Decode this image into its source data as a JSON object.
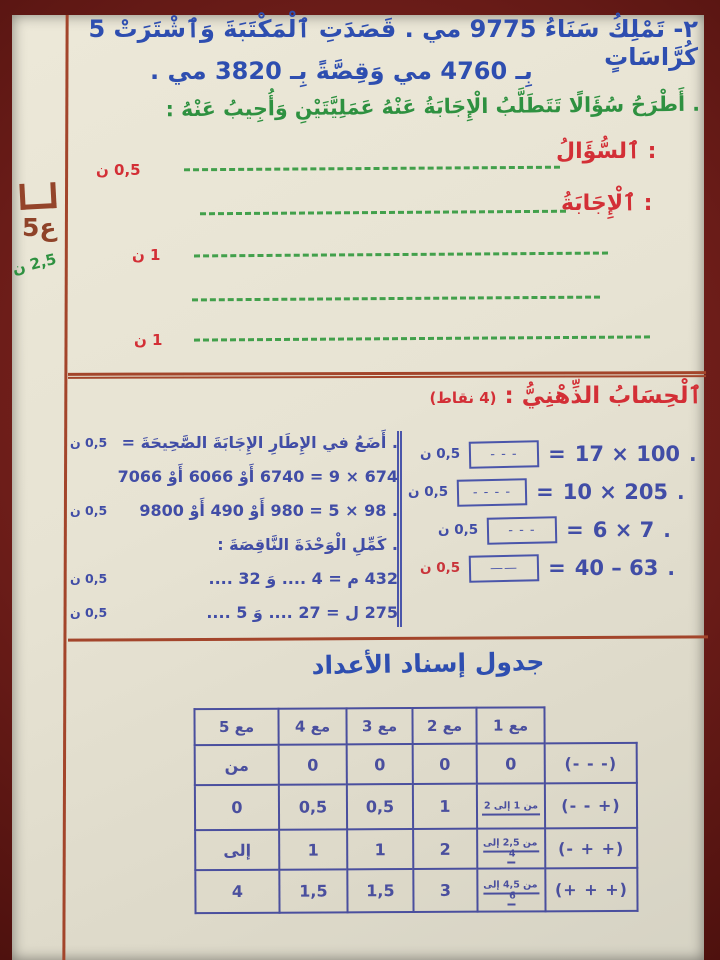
{
  "exercise": {
    "line1": "٢- تَمْلِكُ سَنَاءُ 9775 مي . قَصَدَتِ ٱلْمَكْتَبَةَ وَٱشْتَرَتْ 5 كُرَّاسَاتٍ",
    "line2": "بِـ 4760 مي وَقِصَّةً بِـ 3820 مي .",
    "instruction": ". أَطْرَحُ سُؤَالًا تَتَطَلَّبُ الْإِجَابَةُ عَنْهُ عَمَلِيَّتَيْنِ وَأُجِيبُ عَنْهُ :",
    "question_label": "ٱلسُّؤَالُ :",
    "answer_label": "ٱلْإِجَابَةُ :",
    "mark_question": "0,5 ن",
    "mark_answer1": "1 ن",
    "mark_answer2": "1 ن"
  },
  "margin": {
    "score": "ع5",
    "green_mark": "2,5 ن"
  },
  "mental": {
    "title": "ٱلْحِسَابُ الذِّهْنِيُّ :",
    "points": "(4 نقاط)",
    "equals": "=",
    "bullet": ".",
    "rows": [
      {
        "mark": "0,5 ن",
        "box": "- - -",
        "expr": "17 × 100"
      },
      {
        "mark": "0,5 ن",
        "box": "- - - -",
        "expr": "10 × 205"
      },
      {
        "mark": "0,5 ن",
        "box": "- - -",
        "expr": "6 × 7"
      },
      {
        "mark": "0,5 ن",
        "box": "——",
        "expr": "40 – 63"
      }
    ],
    "left_lines": [
      {
        "text": ". أَضَعُ في الإِطَارِ الإِجَابَةَ الصَّحِيحَةَ =",
        "mark": "0,5 ن"
      },
      {
        "text": "674 × 9 = 6740 أَوْ 6066 أَوْ 7066",
        "mark": ""
      },
      {
        "text": ". 98 × 5 = 980 أَوْ 490 أَوْ 9800",
        "mark": "0,5 ن"
      },
      {
        "text": ". كَمِّلِ الْوَحْدَةَ النَّاقِصَةَ :",
        "mark": ""
      },
      {
        "text": "432 م = 4 .... وَ 32 ....",
        "mark": "0,5 ن"
      },
      {
        "text": "275 ل = 27 .... وَ 5 ....",
        "mark": "0,5 ن"
      }
    ]
  },
  "assignment_table": {
    "title": "جدول إسناد الأعداد",
    "headers": [
      "",
      "مع 1",
      "مع 2",
      "مع 3",
      "مع 4",
      "مع 5"
    ],
    "rows": [
      {
        "label": "(- - -)",
        "cells": [
          "0",
          "0",
          "0",
          "0",
          "من"
        ]
      },
      {
        "label": "(- - +)",
        "cells": [
          "من 1 إلى 2",
          "1",
          "0,5",
          "0,5",
          "0"
        ]
      },
      {
        "label": "(- + +)",
        "cells": [
          "من 2,5 إلى 4",
          "2",
          "1",
          "1",
          "إلى"
        ]
      },
      {
        "label": "(+ + +)",
        "cells": [
          "من 4,5 إلى 6",
          "3",
          "1,5",
          "1,5",
          "4"
        ]
      }
    ]
  }
}
